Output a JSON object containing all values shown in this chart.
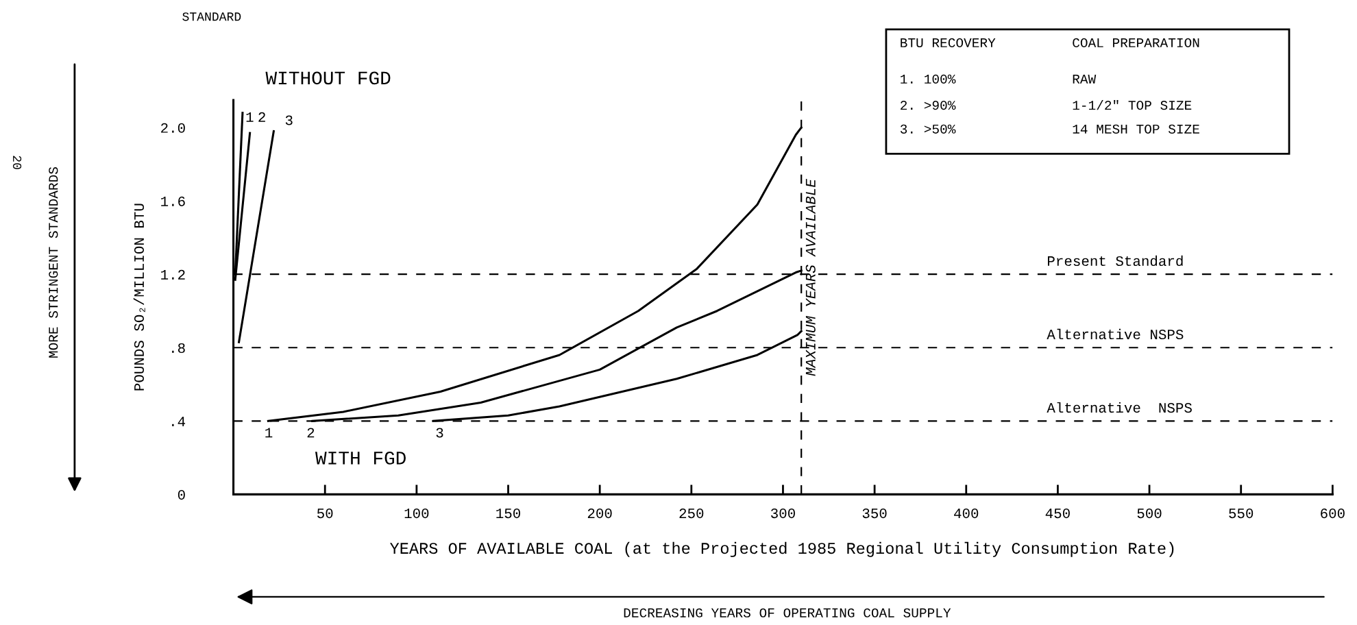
{
  "chart_data": {
    "type": "line",
    "xlabel": "YEARS OF AVAILABLE COAL (at the Projected 1985 Regional Utility Consumption Rate)",
    "ylabel": "POUNDS SO₂/MILLION BTU",
    "xlim": [
      0,
      600
    ],
    "xticks": [
      50,
      100,
      150,
      200,
      250,
      300,
      350,
      400,
      450,
      500,
      550,
      600
    ],
    "ylim": [
      0,
      2.15
    ],
    "yticks": [
      0,
      {
        "value": 0.4,
        "label": ".4"
      },
      {
        "value": 0.8,
        "label": ".8"
      },
      1.2,
      1.6,
      {
        "value": 2.0,
        "label": "2.0"
      }
    ],
    "grid": false,
    "legend": false,
    "marker": "none",
    "line_style": "solid",
    "series": [
      {
        "color": "#000000",
        "x": [
          1,
          5
        ],
        "values": [
          1.2,
          2.08
        ]
      },
      {
        "color": "#000000",
        "x": [
          1,
          9
        ],
        "values": [
          1.17,
          1.97
        ]
      },
      {
        "color": "#000000",
        "x": [
          3,
          22
        ],
        "values": [
          0.83,
          1.98
        ]
      },
      {
        "color": "#000000",
        "x": [
          19,
          60,
          113,
          178,
          221,
          253,
          286,
          307,
          310
        ],
        "values": [
          0.4,
          0.45,
          0.56,
          0.76,
          1.0,
          1.23,
          1.58,
          1.96,
          2.0
        ]
      },
      {
        "color": "#000000",
        "x": [
          43,
          90,
          135,
          200,
          242,
          264,
          307,
          310
        ],
        "values": [
          0.4,
          0.43,
          0.5,
          0.68,
          0.91,
          1.0,
          1.21,
          1.22
        ]
      },
      {
        "color": "#000000",
        "x": [
          109,
          150,
          178,
          242,
          286,
          308,
          310
        ],
        "values": [
          0.4,
          0.43,
          0.48,
          0.63,
          0.76,
          0.87,
          0.89
        ]
      }
    ],
    "ref_lines": [
      {
        "axis": "y",
        "value": 1.2,
        "label": "Present Standard",
        "color": "#000000",
        "line_style": "dashed"
      },
      {
        "axis": "y",
        "value": 0.8,
        "label": "Alternative NSPS",
        "color": "#000000",
        "line_style": "dashed"
      },
      {
        "axis": "y",
        "value": 0.4,
        "label": "Alternative  NSPS",
        "color": "#000000",
        "line_style": "dashed"
      },
      {
        "axis": "x",
        "value": 310,
        "label": "MAXIMUM YEARS AVAILABLE",
        "color": "#000000",
        "line_style": "dashed"
      }
    ],
    "annotations": [
      "STANDARD",
      "20",
      "WITHOUT FGD",
      "WITH FGD",
      "MORE STRINGENT STANDARDS",
      "DECREASING YEARS OF OPERATING COAL SUPPLY",
      "BTU RECOVERY",
      "COAL PREPARATION",
      "1. 100%",
      "RAW",
      "2. >90%",
      "1-1/2\" TOP SIZE",
      "3. >50%",
      "14 MESH TOP SIZE",
      "1",
      "2",
      "3",
      "1",
      "2",
      "3"
    ]
  }
}
